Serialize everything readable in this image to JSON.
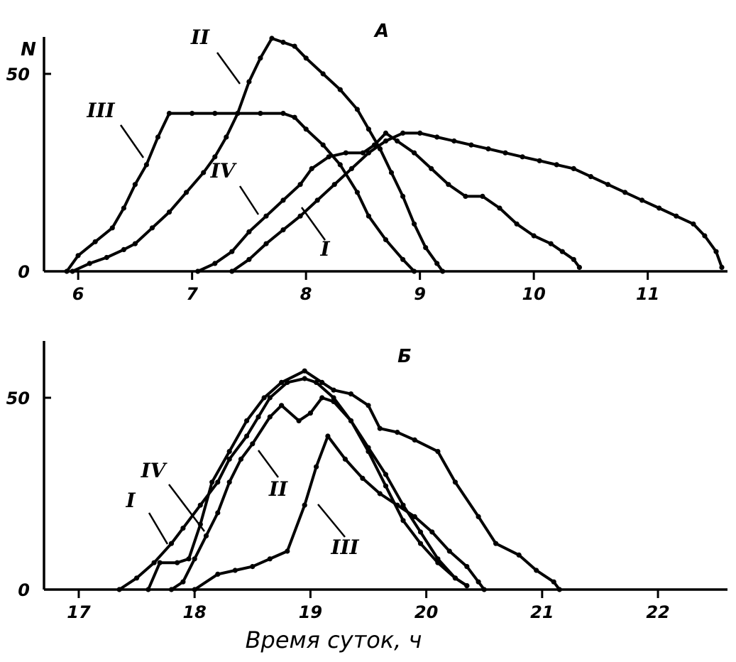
{
  "xlabel": "Время суток, ч",
  "chart_data": [
    {
      "type": "line",
      "title": "А",
      "ylabel": "N",
      "xlim": [
        5.7,
        11.7
      ],
      "ylim": [
        0,
        60
      ],
      "xticks": [
        "6",
        "7",
        "8",
        "9",
        "10",
        "11"
      ],
      "yticks": [
        "0",
        "50"
      ],
      "grid": false,
      "series": [
        {
          "name": "I",
          "points": [
            [
              7.35,
              0
            ],
            [
              7.5,
              3
            ],
            [
              7.65,
              7
            ],
            [
              7.8,
              10.5
            ],
            [
              7.95,
              14
            ],
            [
              8.1,
              18
            ],
            [
              8.25,
              22
            ],
            [
              8.4,
              26
            ],
            [
              8.55,
              30
            ],
            [
              8.7,
              33
            ],
            [
              8.85,
              35
            ],
            [
              9.0,
              35
            ],
            [
              9.15,
              34
            ],
            [
              9.3,
              33
            ],
            [
              9.45,
              32
            ],
            [
              9.6,
              31
            ],
            [
              9.75,
              30
            ],
            [
              9.9,
              29
            ],
            [
              10.05,
              28
            ],
            [
              10.2,
              27
            ],
            [
              10.35,
              26
            ],
            [
              10.5,
              24
            ],
            [
              10.65,
              22
            ],
            [
              10.8,
              20
            ],
            [
              10.95,
              18
            ],
            [
              11.1,
              16
            ],
            [
              11.25,
              14
            ],
            [
              11.4,
              12
            ],
            [
              11.5,
              9
            ],
            [
              11.6,
              5
            ],
            [
              11.65,
              1
            ]
          ]
        },
        {
          "name": "II",
          "points": [
            [
              5.95,
              0
            ],
            [
              6.1,
              2
            ],
            [
              6.25,
              3.5
            ],
            [
              6.4,
              5.5
            ],
            [
              6.5,
              7
            ],
            [
              6.65,
              11
            ],
            [
              6.8,
              15
            ],
            [
              6.95,
              20
            ],
            [
              7.1,
              25
            ],
            [
              7.2,
              29
            ],
            [
              7.3,
              34
            ],
            [
              7.4,
              40
            ],
            [
              7.5,
              48
            ],
            [
              7.6,
              54
            ],
            [
              7.7,
              59
            ],
            [
              7.8,
              58
            ],
            [
              7.9,
              57
            ],
            [
              8.0,
              54
            ],
            [
              8.15,
              50
            ],
            [
              8.3,
              46
            ],
            [
              8.45,
              41
            ],
            [
              8.55,
              36
            ],
            [
              8.65,
              31
            ],
            [
              8.75,
              25
            ],
            [
              8.85,
              19
            ],
            [
              8.95,
              12
            ],
            [
              9.05,
              6
            ],
            [
              9.15,
              2
            ],
            [
              9.2,
              0
            ]
          ]
        },
        {
          "name": "III",
          "points": [
            [
              5.9,
              0
            ],
            [
              6.0,
              4
            ],
            [
              6.15,
              7.5
            ],
            [
              6.3,
              11
            ],
            [
              6.4,
              16
            ],
            [
              6.5,
              22
            ],
            [
              6.6,
              27
            ],
            [
              6.7,
              34
            ],
            [
              6.8,
              40
            ],
            [
              7.0,
              40
            ],
            [
              7.2,
              40
            ],
            [
              7.4,
              40
            ],
            [
              7.6,
              40
            ],
            [
              7.8,
              40
            ],
            [
              7.9,
              39
            ],
            [
              8.0,
              36
            ],
            [
              8.15,
              32
            ],
            [
              8.3,
              27
            ],
            [
              8.45,
              20
            ],
            [
              8.55,
              14
            ],
            [
              8.7,
              8
            ],
            [
              8.85,
              3
            ],
            [
              8.95,
              0
            ]
          ]
        },
        {
          "name": "IV",
          "points": [
            [
              7.05,
              0
            ],
            [
              7.2,
              2
            ],
            [
              7.35,
              5
            ],
            [
              7.5,
              10
            ],
            [
              7.65,
              14
            ],
            [
              7.8,
              18
            ],
            [
              7.95,
              22
            ],
            [
              8.05,
              26
            ],
            [
              8.2,
              29
            ],
            [
              8.35,
              30
            ],
            [
              8.5,
              30
            ],
            [
              8.6,
              32
            ],
            [
              8.7,
              35
            ],
            [
              8.8,
              33
            ],
            [
              8.95,
              30
            ],
            [
              9.1,
              26
            ],
            [
              9.25,
              22
            ],
            [
              9.4,
              19
            ],
            [
              9.55,
              19
            ],
            [
              9.7,
              16
            ],
            [
              9.85,
              12
            ],
            [
              10.0,
              9
            ],
            [
              10.15,
              7
            ],
            [
              10.25,
              5
            ],
            [
              10.35,
              3
            ],
            [
              10.4,
              1
            ]
          ]
        }
      ]
    },
    {
      "type": "line",
      "title": "Б",
      "xlim": [
        16.7,
        22.6
      ],
      "ylim": [
        0,
        60
      ],
      "xticks": [
        "17",
        "18",
        "19",
        "20",
        "21",
        "22"
      ],
      "yticks": [
        "0",
        "50"
      ],
      "grid": false,
      "series": [
        {
          "name": "I",
          "points": [
            [
              17.35,
              0
            ],
            [
              17.5,
              3
            ],
            [
              17.65,
              7
            ],
            [
              17.8,
              12
            ],
            [
              17.9,
              16
            ],
            [
              18.05,
              22
            ],
            [
              18.2,
              28
            ],
            [
              18.3,
              34
            ],
            [
              18.45,
              40
            ],
            [
              18.55,
              45
            ],
            [
              18.65,
              50
            ],
            [
              18.8,
              54
            ],
            [
              18.95,
              55
            ],
            [
              19.05,
              54
            ],
            [
              19.2,
              50
            ],
            [
              19.35,
              44
            ],
            [
              19.5,
              37
            ],
            [
              19.65,
              30
            ],
            [
              19.8,
              22
            ],
            [
              19.95,
              15
            ],
            [
              20.1,
              8
            ],
            [
              20.25,
              3
            ],
            [
              20.35,
              1
            ]
          ]
        },
        {
          "name": "II",
          "points": [
            [
              17.8,
              0
            ],
            [
              17.9,
              2
            ],
            [
              18.0,
              8
            ],
            [
              18.1,
              14
            ],
            [
              18.2,
              20
            ],
            [
              18.3,
              28
            ],
            [
              18.4,
              34
            ],
            [
              18.5,
              38
            ],
            [
              18.65,
              45
            ],
            [
              18.75,
              48
            ],
            [
              18.9,
              44
            ],
            [
              19.0,
              46
            ],
            [
              19.1,
              50
            ],
            [
              19.2,
              49
            ],
            [
              19.35,
              44
            ],
            [
              19.5,
              36
            ],
            [
              19.65,
              27
            ],
            [
              19.8,
              18
            ],
            [
              19.95,
              12
            ],
            [
              20.1,
              7
            ],
            [
              20.25,
              3
            ],
            [
              20.35,
              1
            ]
          ]
        },
        {
          "name": "III",
          "points": [
            [
              18.0,
              0
            ],
            [
              18.2,
              4
            ],
            [
              18.35,
              5
            ],
            [
              18.5,
              6
            ],
            [
              18.65,
              8
            ],
            [
              18.8,
              10
            ],
            [
              18.95,
              22
            ],
            [
              19.05,
              32
            ],
            [
              19.15,
              40
            ],
            [
              19.3,
              34
            ],
            [
              19.45,
              29
            ],
            [
              19.6,
              25
            ],
            [
              19.75,
              22
            ],
            [
              19.9,
              19
            ],
            [
              20.05,
              15
            ],
            [
              20.2,
              10
            ],
            [
              20.35,
              6
            ],
            [
              20.45,
              2
            ],
            [
              20.5,
              0
            ]
          ]
        },
        {
          "name": "IV",
          "points": [
            [
              17.6,
              0
            ],
            [
              17.7,
              7
            ],
            [
              17.85,
              7
            ],
            [
              17.95,
              8
            ],
            [
              18.05,
              17
            ],
            [
              18.15,
              28
            ],
            [
              18.3,
              36
            ],
            [
              18.45,
              44
            ],
            [
              18.6,
              50
            ],
            [
              18.75,
              54
            ],
            [
              18.95,
              57
            ],
            [
              19.1,
              54
            ],
            [
              19.2,
              52
            ],
            [
              19.35,
              51
            ],
            [
              19.5,
              48
            ],
            [
              19.6,
              42
            ],
            [
              19.75,
              41
            ],
            [
              19.9,
              39
            ],
            [
              20.1,
              36
            ],
            [
              20.25,
              28
            ],
            [
              20.45,
              19
            ],
            [
              20.6,
              12
            ],
            [
              20.8,
              9
            ],
            [
              20.95,
              5
            ],
            [
              21.1,
              2
            ],
            [
              21.15,
              0
            ]
          ]
        }
      ]
    }
  ]
}
